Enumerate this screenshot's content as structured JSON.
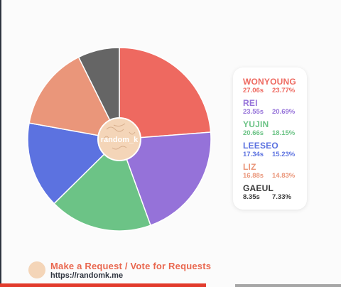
{
  "chart_data": {
    "type": "pie",
    "title": "",
    "center_label": "random_k",
    "slices": [
      {
        "name": "WONYOUNG",
        "seconds": "27.06s",
        "percent": "23.77%",
        "value": 23.77,
        "color": "#ee6960"
      },
      {
        "name": "REI",
        "seconds": "23.55s",
        "percent": "20.69%",
        "value": 20.69,
        "color": "#9572d9"
      },
      {
        "name": "YUJIN",
        "seconds": "20.66s",
        "percent": "18.15%",
        "value": 18.15,
        "color": "#6cc386"
      },
      {
        "name": "LEESEO",
        "seconds": "17.34s",
        "percent": "15.23%",
        "value": 15.23,
        "color": "#5c72e0"
      },
      {
        "name": "LIZ",
        "seconds": "16.88s",
        "percent": "14.83%",
        "value": 14.83,
        "color": "#ea967a"
      },
      {
        "name": "GAEUL",
        "seconds": "8.35s",
        "percent": "7.33%",
        "value": 7.33,
        "color": "#656565"
      }
    ],
    "legend_position": "right"
  },
  "footer": {
    "title": "Make a Request / Vote for Requests",
    "url": "https://randomk.me"
  },
  "colors": {
    "legend_gaeul_text": "#3a3a3a",
    "footer_title": "#e9674f",
    "bottom_bar_red": "#e23b2c",
    "bottom_bar_gray": "#a6a6a6"
  }
}
